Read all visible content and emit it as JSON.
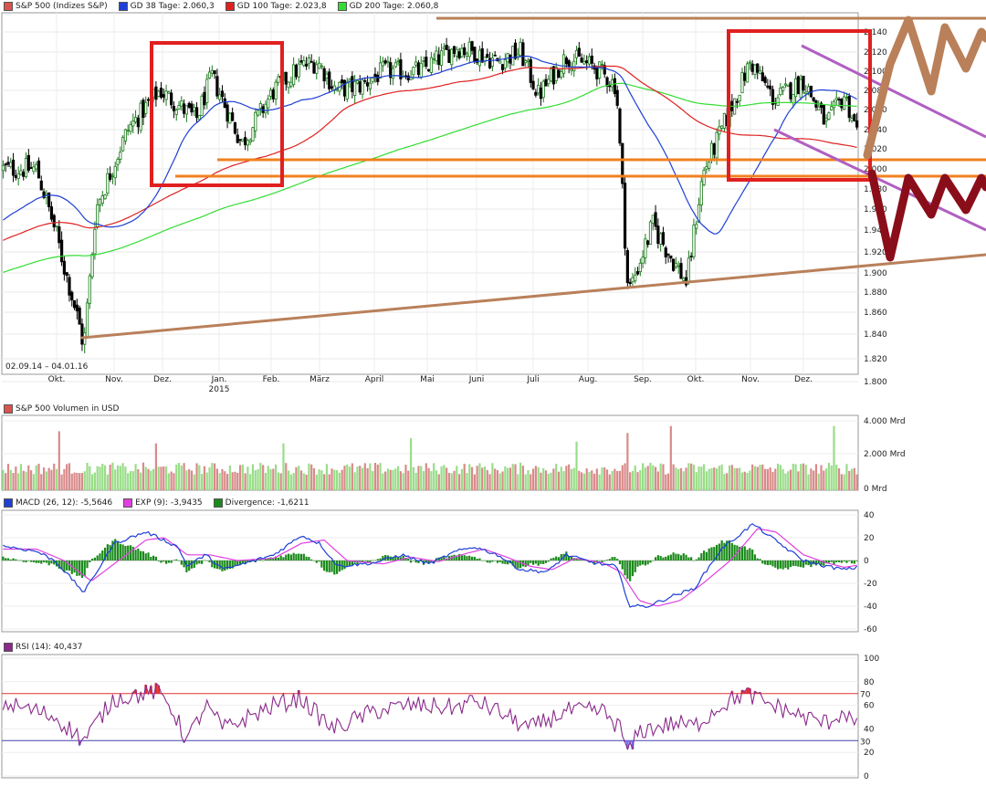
{
  "colors": {
    "price_up": "#1a7a1a",
    "price_down": "#000000",
    "ma38": "#1f3fd6",
    "ma100": "#e02020",
    "ma200": "#33dd33",
    "volume_up": "#99dd88",
    "volume_down": "#d98a8a",
    "macd": "#1f3fd6",
    "signal": "#e040e0",
    "divergence": "#1a8a1a",
    "rsi": "#8a2a8a",
    "rsi_over": "#e03030",
    "rsi_under": "#7777ee",
    "box": "#e02020",
    "brown": "#b9805a",
    "purple": "#b060c0",
    "orange": "#f08020",
    "darkred": "#8a0e1a"
  },
  "price_panel": {
    "legend": [
      {
        "label": "S&P 500 (Indizes S&P)",
        "color": "#d9534f"
      },
      {
        "label": "GD 38 Tage: 2.060,3",
        "color": "#1f3fd6"
      },
      {
        "label": "GD 100 Tage: 2.023,8",
        "color": "#e02020"
      },
      {
        "label": "GD 200 Tage: 2.060,8",
        "color": "#33dd33"
      }
    ],
    "y_ticks": [
      "2.140",
      "2.120",
      "2.100",
      "2.080",
      "2.060",
      "2.040",
      "2.020",
      "2.000",
      "1.980",
      "1.960",
      "1.940",
      "1.920",
      "1.900",
      "1.880",
      "1.860",
      "1.840",
      "1.820",
      "1.800"
    ],
    "x_ticks": [
      "Okt.",
      "Nov.",
      "Dez.",
      "Jan.",
      "Feb.",
      "März",
      "April",
      "Mai",
      "Juni",
      "Juli",
      "Aug.",
      "Sep.",
      "Okt.",
      "Nov.",
      "Dez."
    ],
    "year_label": "2015",
    "date_range": "02.09.14 – 04.01.16"
  },
  "volume_panel": {
    "legend": "S&P 500 Volumen in USD",
    "y_ticks": [
      "4.000 Mrd",
      "2.000 Mrd",
      "0 Mrd"
    ]
  },
  "macd_panel": {
    "legend": [
      {
        "label": "MACD (26, 12): -5,5646",
        "color": "#1f3fd6"
      },
      {
        "label": "EXP (9): -3,9435",
        "color": "#e040e0"
      },
      {
        "label": "Divergence: -1,6211",
        "color": "#1a8a1a"
      }
    ],
    "y_ticks": [
      "40",
      "20",
      "0",
      "-20",
      "-40",
      "-60"
    ]
  },
  "rsi_panel": {
    "legend": [
      {
        "label": "RSI (14): 40,437",
        "color": "#8a2a8a"
      }
    ],
    "y_ticks": [
      "100",
      "80",
      "60",
      "40",
      "20",
      "0"
    ],
    "level_high": "70",
    "level_low": "30"
  },
  "chart_data": [
    {
      "type": "line",
      "title": "S&P 500 (Indizes S&P)",
      "x": [
        "Sep 14",
        "Okt",
        "Nov",
        "Dez",
        "Jan 15",
        "Feb",
        "März",
        "April",
        "Mai",
        "Juni",
        "Juli",
        "Aug",
        "Sep",
        "Okt",
        "Nov",
        "Dez",
        "Jan 16"
      ],
      "series": [
        {
          "name": "S&P 500 (Indizes S&P)",
          "values": [
            2000,
            1945,
            2030,
            2075,
            2060,
            2090,
            2110,
            2110,
            2120,
            2115,
            2095,
            2065,
            1920,
            1960,
            2085,
            2070,
            2015
          ]
        },
        {
          "name": "GD 38 Tage",
          "values": [
            1985,
            1970,
            1990,
            2050,
            2060,
            2080,
            2100,
            2100,
            2110,
            2115,
            2105,
            2095,
            2000,
            1930,
            2010,
            2075,
            2060
          ]
        },
        {
          "name": "GD 100 Tage",
          "values": [
            1950,
            1960,
            1985,
            2015,
            2040,
            2055,
            2070,
            2080,
            2090,
            2100,
            2105,
            2100,
            2090,
            2050,
            2035,
            2040,
            2024
          ]
        },
        {
          "name": "GD 200 Tage",
          "values": [
            1880,
            1900,
            1925,
            1950,
            1975,
            1995,
            2015,
            2030,
            2045,
            2060,
            2065,
            2070,
            2075,
            2065,
            2060,
            2060,
            2061
          ]
        }
      ],
      "ylim": [
        1800,
        2145
      ]
    },
    {
      "type": "bar",
      "title": "S&P 500 Volumen in USD",
      "ylim": [
        0,
        4000
      ],
      "peaks": [
        {
          "x": "Okt",
          "value": 3400
        },
        {
          "x": "Dez",
          "value": 2700
        },
        {
          "x": "März",
          "value": 2700
        },
        {
          "x": "Juli",
          "value": 2800
        },
        {
          "x": "Aug",
          "value": 3300
        },
        {
          "x": "Sep",
          "value": 3700
        },
        {
          "x": "Dez",
          "value": 3700
        }
      ]
    },
    {
      "type": "line",
      "title": "MACD (26, 12)",
      "x": [
        "Sep 14",
        "Okt",
        "Nov",
        "Dez",
        "Jan 15",
        "Feb",
        "März",
        "April",
        "Mai",
        "Juni",
        "Juli",
        "Aug",
        "Sep",
        "Okt",
        "Nov",
        "Dez",
        "Jan 16"
      ],
      "series": [
        {
          "name": "MACD (26, 12)",
          "values": [
            13,
            -5,
            -28,
            25,
            -2,
            12,
            20,
            -2,
            8,
            10,
            -8,
            -5,
            -40,
            -25,
            30,
            10,
            -6
          ]
        },
        {
          "name": "EXP (9)",
          "values": [
            10,
            5,
            -20,
            15,
            5,
            5,
            15,
            3,
            5,
            8,
            -3,
            -2,
            -35,
            -30,
            25,
            15,
            -4
          ]
        }
      ],
      "ylim": [
        -60,
        40
      ]
    },
    {
      "type": "line",
      "title": "RSI (14)",
      "x": [
        "Sep 14",
        "Okt",
        "Nov",
        "Dez",
        "Jan 15",
        "Feb",
        "März",
        "April",
        "Mai",
        "Juni",
        "Juli",
        "Aug",
        "Sep",
        "Okt",
        "Nov",
        "Dez",
        "Jan 16"
      ],
      "series": [
        {
          "name": "RSI (14)",
          "values": [
            62,
            32,
            62,
            72,
            38,
            62,
            58,
            48,
            55,
            58,
            45,
            40,
            22,
            45,
            68,
            55,
            40
          ]
        }
      ],
      "ylim": [
        0,
        100
      ]
    }
  ]
}
